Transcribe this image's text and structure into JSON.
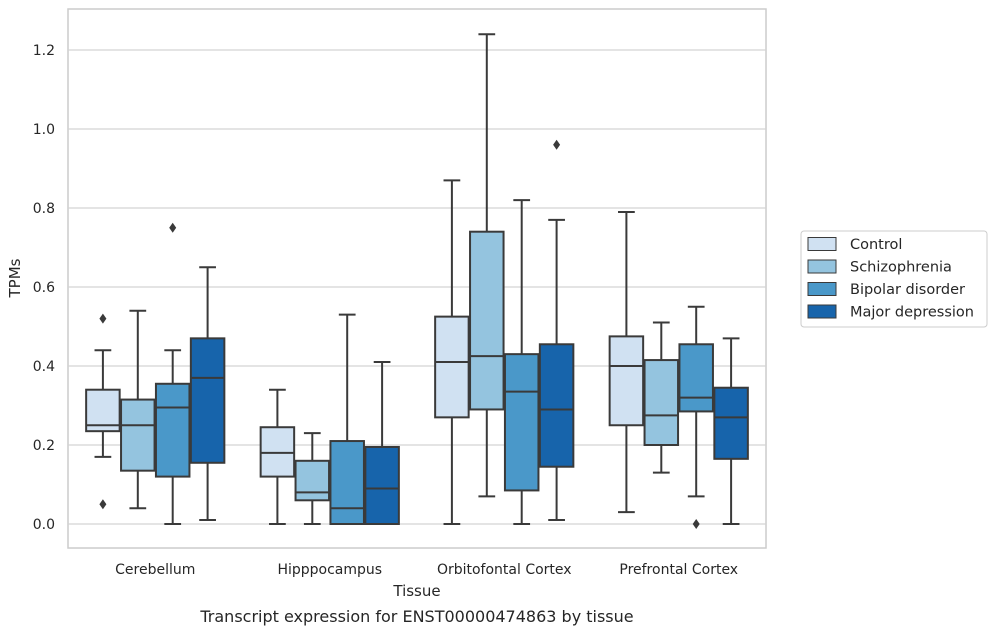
{
  "chart_data": {
    "type": "box",
    "caption": "Transcript expression for ENST00000474863 by tissue",
    "xlabel": "Tissue",
    "ylabel": "TPMs",
    "ylim": [
      -0.06,
      1.31
    ],
    "yticks": [
      "0.0",
      "0.2",
      "0.4",
      "0.6",
      "0.8",
      "1.0",
      "1.2"
    ],
    "categories": [
      "Cerebellum",
      "Hipppocampus",
      "Orbitofontal Cortex",
      "Prefrontal Cortex"
    ],
    "grid": true,
    "legend_position": "right",
    "series": [
      {
        "name": "Control",
        "color": "#d0e1f2",
        "boxes": [
          {
            "whisker_low": 0.17,
            "q1": 0.235,
            "median": 0.25,
            "q3": 0.34,
            "whisker_high": 0.44,
            "outliers": [
              0.52,
              0.05
            ]
          },
          {
            "whisker_low": 0.0,
            "q1": 0.12,
            "median": 0.18,
            "q3": 0.245,
            "whisker_high": 0.34,
            "outliers": []
          },
          {
            "whisker_low": 0.0,
            "q1": 0.27,
            "median": 0.41,
            "q3": 0.525,
            "whisker_high": 0.87,
            "outliers": []
          },
          {
            "whisker_low": 0.03,
            "q1": 0.25,
            "median": 0.4,
            "q3": 0.475,
            "whisker_high": 0.79,
            "outliers": []
          }
        ]
      },
      {
        "name": "Schizophrenia",
        "color": "#94c4df",
        "boxes": [
          {
            "whisker_low": 0.04,
            "q1": 0.135,
            "median": 0.25,
            "q3": 0.315,
            "whisker_high": 0.54,
            "outliers": []
          },
          {
            "whisker_low": 0.0,
            "q1": 0.06,
            "median": 0.08,
            "q3": 0.16,
            "whisker_high": 0.23,
            "outliers": []
          },
          {
            "whisker_low": 0.07,
            "q1": 0.29,
            "median": 0.425,
            "q3": 0.74,
            "whisker_high": 1.24,
            "outliers": []
          },
          {
            "whisker_low": 0.13,
            "q1": 0.2,
            "median": 0.275,
            "q3": 0.415,
            "whisker_high": 0.51,
            "outliers": []
          }
        ]
      },
      {
        "name": "Bipolar disorder",
        "color": "#4a98c9",
        "boxes": [
          {
            "whisker_low": 0.0,
            "q1": 0.12,
            "median": 0.295,
            "q3": 0.355,
            "whisker_high": 0.44,
            "outliers": [
              0.75
            ]
          },
          {
            "whisker_low": 0.0,
            "q1": 0.0,
            "median": 0.04,
            "q3": 0.21,
            "whisker_high": 0.53,
            "outliers": []
          },
          {
            "whisker_low": 0.0,
            "q1": 0.085,
            "median": 0.335,
            "q3": 0.43,
            "whisker_high": 0.82,
            "outliers": []
          },
          {
            "whisker_low": 0.07,
            "q1": 0.285,
            "median": 0.32,
            "q3": 0.455,
            "whisker_high": 0.55,
            "outliers": [
              0.0
            ]
          }
        ]
      },
      {
        "name": "Major depression",
        "color": "#1764ab",
        "boxes": [
          {
            "whisker_low": 0.01,
            "q1": 0.155,
            "median": 0.37,
            "q3": 0.47,
            "whisker_high": 0.65,
            "outliers": []
          },
          {
            "whisker_low": 0.0,
            "q1": 0.0,
            "median": 0.09,
            "q3": 0.195,
            "whisker_high": 0.41,
            "outliers": []
          },
          {
            "whisker_low": 0.01,
            "q1": 0.145,
            "median": 0.29,
            "q3": 0.455,
            "whisker_high": 0.77,
            "outliers": [
              0.96
            ]
          },
          {
            "whisker_low": 0.0,
            "q1": 0.165,
            "median": 0.27,
            "q3": 0.345,
            "whisker_high": 0.47,
            "outliers": []
          }
        ]
      }
    ]
  }
}
